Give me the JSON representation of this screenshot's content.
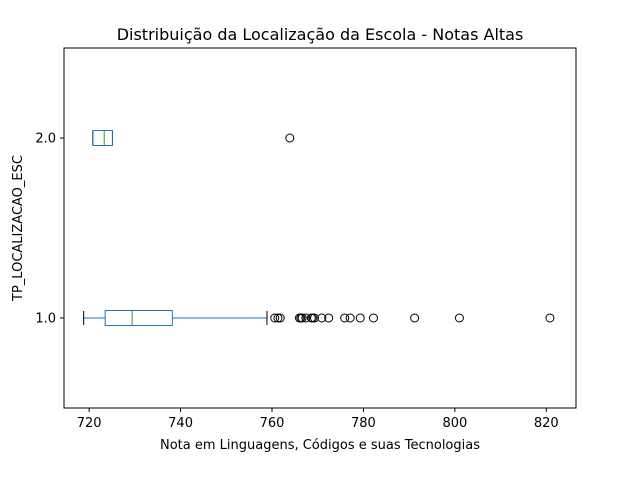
{
  "chart_data": {
    "type": "boxplot",
    "orientation": "horizontal",
    "title": "Distribuição da Localização da Escola - Notas Altas",
    "xlabel": "Nota em Linguagens, Códigos e suas Tecnologias",
    "ylabel": "TP_LOCALIZACAO_ESC",
    "xlim": [
      714.5,
      826.5
    ],
    "ylim": [
      0.5,
      2.5
    ],
    "x_ticks": [
      720,
      740,
      760,
      780,
      800,
      820
    ],
    "categories": [
      "1.0",
      "2.0"
    ],
    "grid": false,
    "colors": {
      "box": "#1f77b4",
      "median": "#2ca02c",
      "whisker": "#1f77b4",
      "cap": "#000000",
      "flier": "#000000"
    },
    "boxes": [
      {
        "category": "1.0",
        "y": 1,
        "whisker_low": 718.8,
        "q1": 723.5,
        "median": 729.4,
        "q3": 738.2,
        "whisker_high": 758.9,
        "fliers": [
          760.6,
          761.3,
          761.8,
          766.0,
          766.3,
          766.6,
          767.4,
          768.6,
          768.9,
          769.3,
          770.9,
          772.4,
          775.9,
          777.1,
          779.3,
          782.2,
          791.2,
          801.0,
          820.8
        ]
      },
      {
        "category": "2.0",
        "y": 2,
        "whisker_low": 720.8,
        "q1": 720.8,
        "median": 723.3,
        "q3": 725.1,
        "whisker_high": 725.1,
        "fliers": [
          763.9
        ]
      }
    ]
  }
}
